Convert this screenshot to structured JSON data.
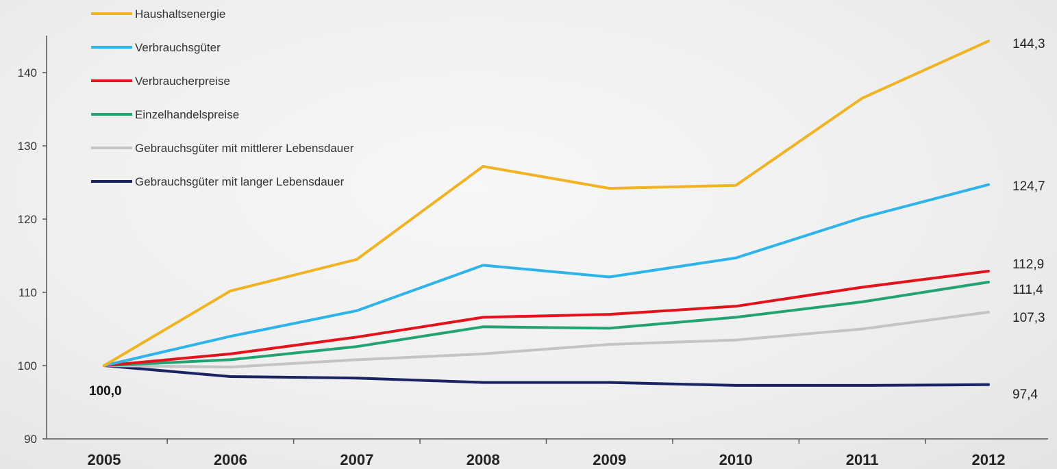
{
  "chart_data": {
    "type": "line",
    "title": "",
    "xlabel": "",
    "ylabel": "",
    "x": [
      "2005",
      "2006",
      "2007",
      "2008",
      "2009",
      "2010",
      "2011",
      "2012"
    ],
    "ylim": [
      90,
      145
    ],
    "yticks": [
      90,
      100,
      110,
      120,
      130,
      140
    ],
    "grid": false,
    "legend_position": "top-left",
    "series": [
      {
        "name": "Haushaltsenergie",
        "color": "#f0b323",
        "values": [
          100.0,
          110.2,
          114.5,
          127.2,
          124.2,
          124.6,
          136.5,
          144.3
        ],
        "end_label": "144,3"
      },
      {
        "name": "Verbrauchsgüter",
        "color": "#2eb4e8",
        "values": [
          100.0,
          104.0,
          107.5,
          113.7,
          112.1,
          114.7,
          120.2,
          124.7
        ],
        "end_label": "124,7"
      },
      {
        "name": "Verbraucherpreise",
        "color": "#e3121b",
        "values": [
          100.0,
          101.6,
          103.9,
          106.6,
          107.0,
          108.1,
          110.7,
          112.9
        ],
        "end_label": "112,9"
      },
      {
        "name": "Einzelhandelspreise",
        "color": "#23a372",
        "values": [
          100.0,
          100.8,
          102.6,
          105.3,
          105.1,
          106.6,
          108.7,
          111.4
        ],
        "end_label": "111,4"
      },
      {
        "name": "Gebrauchsgüter mit mittlerer Lebensdauer",
        "color": "#c4c4c4",
        "values": [
          100.0,
          99.8,
          100.8,
          101.6,
          102.9,
          103.5,
          105.0,
          107.3
        ],
        "end_label": "107,3"
      },
      {
        "name": "Gebrauchsgüter mit langer Lebensdauer",
        "color": "#1b2462",
        "values": [
          100.0,
          98.5,
          98.3,
          97.7,
          97.7,
          97.3,
          97.3,
          97.4
        ],
        "end_label": "97,4"
      }
    ],
    "start_label": "100,0"
  }
}
